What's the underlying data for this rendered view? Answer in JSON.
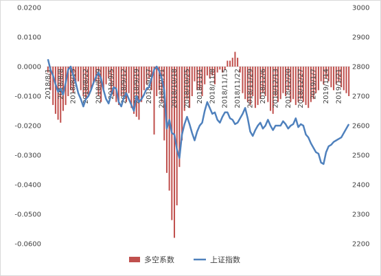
{
  "chart_data": {
    "type": "bar",
    "legend_position": "bottom",
    "grid": false,
    "left_axis": {
      "ylim": [
        -0.06,
        0.02
      ],
      "tick_labels": [
        "0.0200",
        "0.0100",
        "0.0000",
        "-0.0100",
        "-0.0200",
        "-0.0300",
        "-0.0400",
        "-0.0500",
        "-0.0600"
      ],
      "tick_values": [
        0.02,
        0.01,
        0,
        -0.01,
        -0.02,
        -0.03,
        -0.04,
        -0.05,
        -0.06
      ]
    },
    "right_axis": {
      "ylim": [
        2200,
        3000
      ],
      "tick_labels": [
        "3000",
        "2900",
        "2800",
        "2700",
        "2600",
        "2500",
        "2400",
        "2300",
        "2200"
      ],
      "tick_values": [
        3000,
        2900,
        2800,
        2700,
        2600,
        2500,
        2400,
        2300,
        2200
      ]
    },
    "x_tick_labels": [
      "2018/8/1",
      "2018/8/8",
      "2018/8/15",
      "2018/8/22",
      "2018/8/29",
      "2018/9/5",
      "2018/9/12",
      "2018/9/19",
      "2018/9/27",
      "2018/10/11",
      "2018/10/18",
      "2018/10/25",
      "2018/11/1",
      "2018/11/8",
      "2018/11/15",
      "2018/11/22",
      "2018/11/29",
      "2018/12/6",
      "2018/12/13",
      "2018/12/20",
      "2018/12/27",
      "2019/1/7",
      "2019/1/14",
      "2019/1/21"
    ],
    "x_tick_index": [
      0,
      5,
      10,
      15,
      20,
      25,
      30,
      35,
      40,
      45,
      50,
      55,
      60,
      65,
      70,
      75,
      80,
      85,
      90,
      95,
      100,
      105,
      110,
      115
    ],
    "series": [
      {
        "name": "多空系数",
        "type": "bar",
        "color": "#c0504d",
        "axis": "left",
        "values": [
          -0.002,
          -0.008,
          -0.013,
          -0.016,
          -0.018,
          -0.019,
          -0.015,
          -0.013,
          -0.01,
          -0.008,
          -0.009,
          -0.006,
          -0.005,
          -0.008,
          -0.01,
          -0.011,
          -0.01,
          -0.008,
          -0.006,
          -0.005,
          -0.01,
          -0.012,
          -0.008,
          -0.006,
          -0.004,
          -0.009,
          -0.01,
          -0.012,
          -0.013,
          -0.01,
          -0.011,
          -0.012,
          -0.009,
          -0.014,
          -0.016,
          -0.017,
          -0.018,
          -0.012,
          -0.008,
          -0.006,
          -0.004,
          -0.008,
          -0.023,
          -0.01,
          -0.008,
          -0.012,
          -0.025,
          -0.036,
          -0.042,
          -0.052,
          -0.058,
          -0.047,
          -0.034,
          -0.025,
          -0.015,
          -0.011,
          -0.014,
          -0.01,
          -0.005,
          -0.008,
          -0.008,
          -0.01,
          -0.006,
          -0.003,
          -0.004,
          -0.003,
          -0.006,
          -0.002,
          -0.001,
          -0.002,
          -0.001,
          0.002,
          0.002,
          0.003,
          0.005,
          0.003,
          -0.002,
          -0.009,
          -0.011,
          -0.012,
          -0.013,
          -0.01,
          -0.014,
          -0.013,
          -0.011,
          -0.009,
          -0.01,
          -0.012,
          -0.015,
          -0.016,
          -0.01,
          -0.012,
          -0.011,
          -0.009,
          -0.01,
          -0.008,
          -0.012,
          -0.011,
          -0.013,
          -0.012,
          -0.011,
          -0.012,
          -0.013,
          -0.014,
          -0.012,
          -0.011,
          -0.009,
          -0.008,
          -0.005,
          -0.006,
          -0.004,
          -0.005,
          -0.007,
          -0.008,
          -0.006,
          -0.005,
          -0.007,
          -0.008,
          -0.009,
          -0.01
        ]
      },
      {
        "name": "上证指数",
        "type": "line",
        "color": "#4f81bd",
        "axis": "right",
        "values": [
          2825,
          2790,
          2770,
          2740,
          2715,
          2725,
          2705,
          2745,
          2790,
          2800,
          2770,
          2745,
          2710,
          2690,
          2665,
          2690,
          2700,
          2720,
          2745,
          2765,
          2780,
          2760,
          2720,
          2690,
          2675,
          2705,
          2730,
          2725,
          2680,
          2665,
          2695,
          2710,
          2690,
          2670,
          2650,
          2700,
          2680,
          2690,
          2705,
          2725,
          2730,
          2760,
          2790,
          2800,
          2785,
          2760,
          2720,
          2590,
          2620,
          2575,
          2570,
          2520,
          2490,
          2570,
          2605,
          2630,
          2605,
          2575,
          2550,
          2580,
          2600,
          2610,
          2650,
          2680,
          2660,
          2640,
          2645,
          2620,
          2610,
          2630,
          2645,
          2645,
          2625,
          2620,
          2605,
          2610,
          2625,
          2640,
          2660,
          2625,
          2580,
          2565,
          2585,
          2600,
          2610,
          2590,
          2600,
          2620,
          2600,
          2585,
          2600,
          2600,
          2600,
          2615,
          2605,
          2590,
          2600,
          2605,
          2625,
          2595,
          2605,
          2600,
          2570,
          2560,
          2540,
          2525,
          2510,
          2505,
          2475,
          2470,
          2510,
          2530,
          2535,
          2545,
          2550,
          2555,
          2560,
          2575,
          2590,
          2605
        ]
      }
    ]
  }
}
